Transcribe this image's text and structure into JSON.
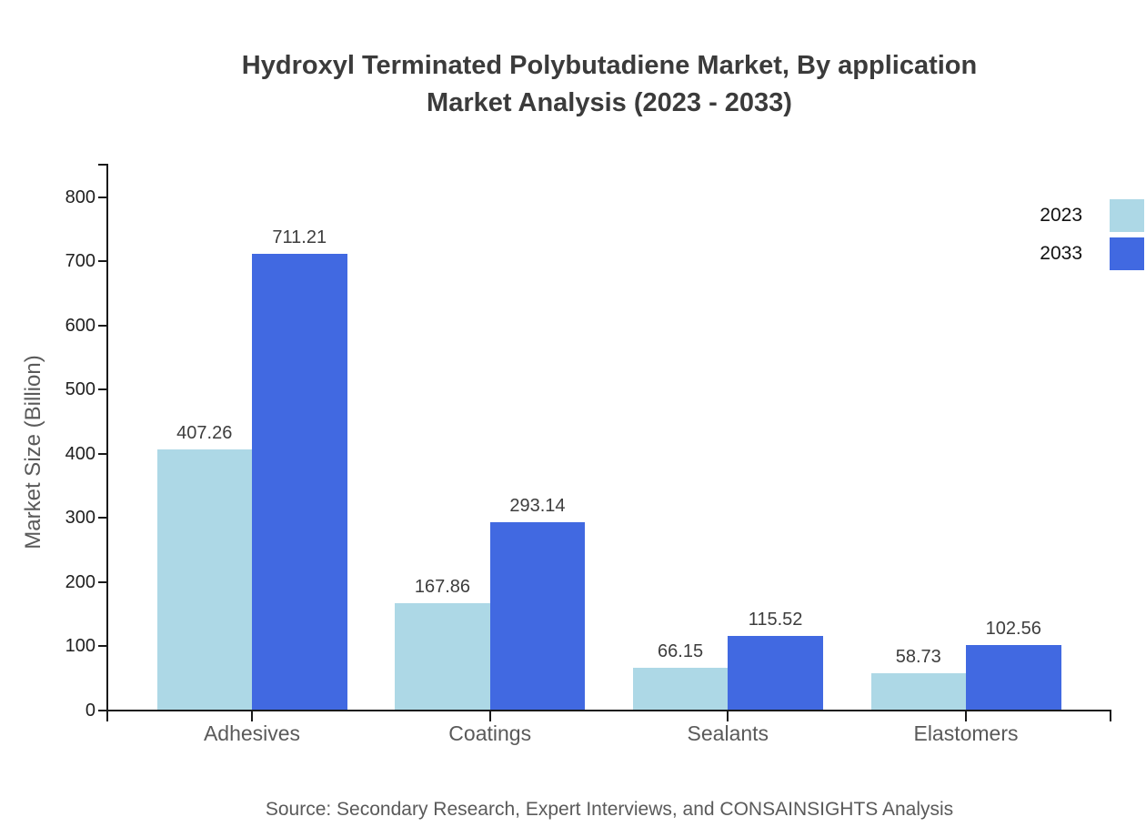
{
  "title": {
    "line1": "Hydroxyl Terminated Polybutadiene Market, By application",
    "line2": "Market Analysis (2023 - 2033)"
  },
  "chart_data": {
    "type": "bar",
    "categories": [
      "Adhesives",
      "Coatings",
      "Sealants",
      "Elastomers"
    ],
    "series": [
      {
        "name": "2023",
        "color": "#ADD8E6",
        "values": [
          407.26,
          167.86,
          66.15,
          58.73
        ]
      },
      {
        "name": "2033",
        "color": "#4169E1",
        "values": [
          711.21,
          293.14,
          115.52,
          102.56
        ]
      }
    ],
    "title": "Hydroxyl Terminated Polybutadiene Market, By application Market Analysis (2023 - 2033)",
    "xlabel": "",
    "ylabel": "Market Size (Billion)",
    "ylim": [
      0,
      850
    ],
    "yticks": [
      0,
      100,
      200,
      300,
      400,
      500,
      600,
      700,
      800
    ],
    "grid": false,
    "legend_position": "top-right",
    "value_labels": true
  },
  "legend": {
    "entries": [
      {
        "label": "2023",
        "color": "#ADD8E6"
      },
      {
        "label": "2033",
        "color": "#4169E1"
      }
    ]
  },
  "source": "Source: Secondary Research, Expert Interviews, and CONSAINSIGHTS Analysis",
  "colors": {
    "series_2023": "#ADD8E6",
    "series_2033": "#4169E1",
    "axis": "#1a1a1a",
    "title_text": "#3b3b3b",
    "muted_text": "#5a5a5a"
  }
}
